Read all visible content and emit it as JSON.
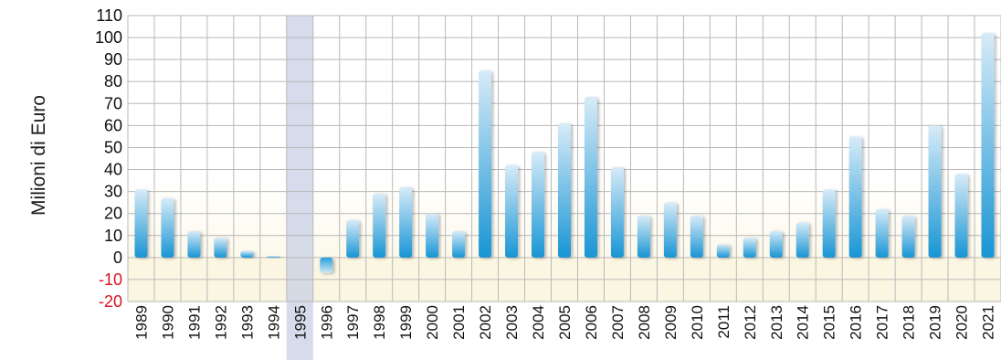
{
  "chart_data": {
    "type": "bar",
    "ylabel": "Milioni di Euro",
    "ylim": [
      -20,
      110
    ],
    "ytick_step": 10,
    "grid": true,
    "categories": [
      "1989",
      "1990",
      "1991",
      "1992",
      "1993",
      "1994",
      "1995",
      "1996",
      "1997",
      "1998",
      "1999",
      "2000",
      "2001",
      "2002",
      "2003",
      "2004",
      "2005",
      "2006",
      "2007",
      "2008",
      "2009",
      "2010",
      "2011",
      "2012",
      "2013",
      "2014",
      "2015",
      "2016",
      "2017",
      "2018",
      "2019",
      "2020",
      "2021"
    ],
    "values": [
      31,
      27,
      12,
      9,
      3,
      0.5,
      null,
      -7,
      17,
      29,
      32,
      20,
      12,
      85,
      42,
      48,
      61,
      73,
      41,
      19,
      25,
      19,
      6,
      9,
      12,
      16,
      31,
      55,
      22,
      19,
      60,
      38,
      102
    ],
    "highlighted_category": "1995",
    "colors": {
      "bar_top": "#c9e3f5",
      "bar_bottom": "#1a9ad6",
      "background_band": "#fbf6e2",
      "grid": "#b8b8b8",
      "negative_tick": "#d9141e",
      "highlight": "#c8d0e6"
    }
  }
}
